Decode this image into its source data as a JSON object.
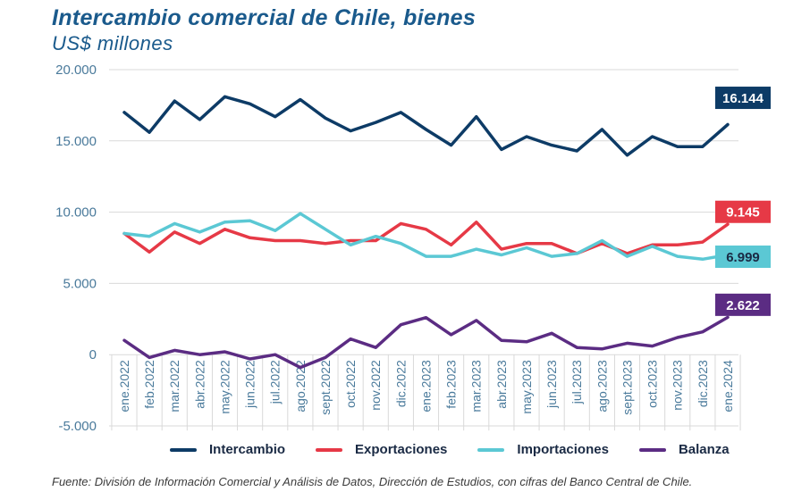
{
  "header": {
    "title": "Intercambio comercial de Chile, bienes",
    "subtitle": "US$ millones"
  },
  "source": "Fuente: División de Información Comercial y Análisis de Datos, Dirección de Estudios, con cifras del Banco Central de Chile.",
  "colors": {
    "intercambio": "#0d3b66",
    "exportaciones": "#e63946",
    "importaciones": "#5bc8d4",
    "balanza": "#5b2c83",
    "axis_text": "#4a7a9b",
    "grid": "#d9d9d9"
  },
  "chart_data": {
    "type": "line",
    "title": "Intercambio comercial de Chile, bienes",
    "ylabel": "US$ millones",
    "ylim": [
      -5000,
      20000
    ],
    "yticks": [
      -5000,
      0,
      5000,
      10000,
      15000,
      20000
    ],
    "ytick_labels": [
      "-5.000",
      "0",
      "5.000",
      "10.000",
      "15.000",
      "20.000"
    ],
    "grid": true,
    "categories": [
      "ene.2022",
      "feb.2022",
      "mar.2022",
      "abr.2022",
      "may.2022",
      "jun.2022",
      "jul.2022",
      "ago.2022",
      "sept.2022",
      "oct.2022",
      "nov.2022",
      "dic.2022",
      "ene.2023",
      "feb.2023",
      "mar.2023",
      "abr.2023",
      "may.2023",
      "jun.2023",
      "jul.2023",
      "ago.2023",
      "sept.2023",
      "oct.2023",
      "nov.2023",
      "dic.2023",
      "ene.2024"
    ],
    "series": [
      {
        "name": "Intercambio",
        "color": "#0d3b66",
        "end_label": "16.144",
        "values": [
          17000,
          15600,
          17800,
          16500,
          18100,
          17600,
          16700,
          17900,
          16600,
          15700,
          16300,
          17000,
          15800,
          14700,
          16700,
          14400,
          15300,
          14700,
          14300,
          15800,
          14000,
          15300,
          14600,
          14600,
          16144
        ]
      },
      {
        "name": "Exportaciones",
        "color": "#e63946",
        "end_label": "9.145",
        "values": [
          8500,
          7200,
          8600,
          7800,
          8800,
          8200,
          8000,
          8000,
          7800,
          8000,
          8000,
          9200,
          8800,
          7700,
          9300,
          7400,
          7800,
          7800,
          7100,
          7800,
          7100,
          7700,
          7700,
          7900,
          9145
        ]
      },
      {
        "name": "Importaciones",
        "color": "#5bc8d4",
        "end_label": "6.999",
        "values": [
          8500,
          8300,
          9200,
          8600,
          9300,
          9400,
          8700,
          9900,
          8800,
          7700,
          8300,
          7800,
          6900,
          6900,
          7400,
          7000,
          7500,
          6900,
          7100,
          8000,
          6900,
          7600,
          6900,
          6700,
          6999
        ]
      },
      {
        "name": "Balanza",
        "color": "#5b2c83",
        "end_label": "2.622",
        "values": [
          1000,
          -200,
          300,
          0,
          200,
          -300,
          0,
          -900,
          -200,
          1100,
          500,
          2100,
          2600,
          1400,
          2400,
          1000,
          900,
          1500,
          500,
          400,
          800,
          600,
          1200,
          1600,
          2622
        ]
      }
    ]
  }
}
